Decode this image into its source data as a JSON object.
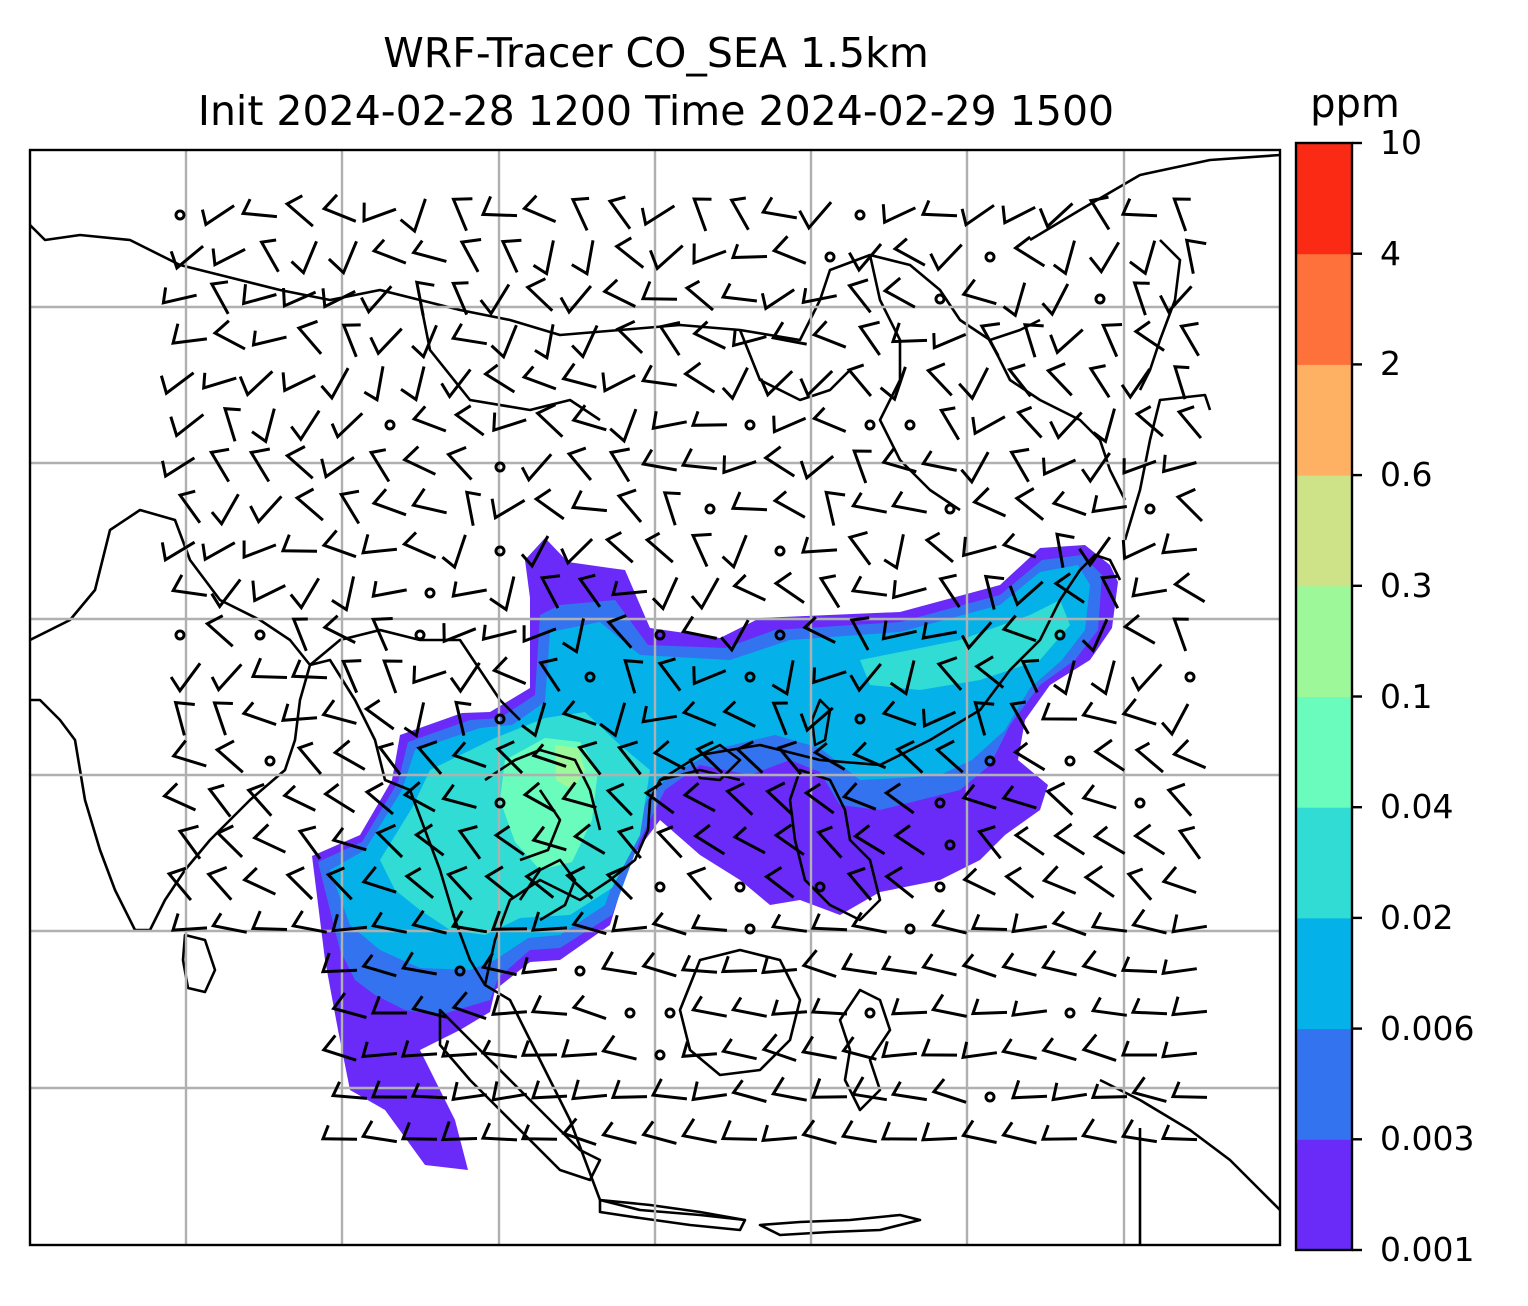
{
  "title": {
    "line1": "WRF-Tracer CO_SEA 1.5km",
    "line2": "Init 2024-02-28 1200 Time 2024-02-29 1500"
  },
  "colorbar": {
    "unit": "ppm",
    "levels": [
      "0.001",
      "0.003",
      "0.006",
      "0.02",
      "0.04",
      "0.1",
      "0.3",
      "0.6",
      "2",
      "4",
      "10"
    ],
    "colors": [
      "#6a2bf8",
      "#3373f0",
      "#04b2e9",
      "#30dcd3",
      "#69fcbd",
      "#9df89a",
      "#cee287",
      "#feb163",
      "#fe713a",
      "#fb2a15"
    ]
  },
  "map": {
    "style": {
      "coastline_color": "#000000",
      "grid_color": "#b0b0b0",
      "barb_color": "#000000"
    }
  }
}
